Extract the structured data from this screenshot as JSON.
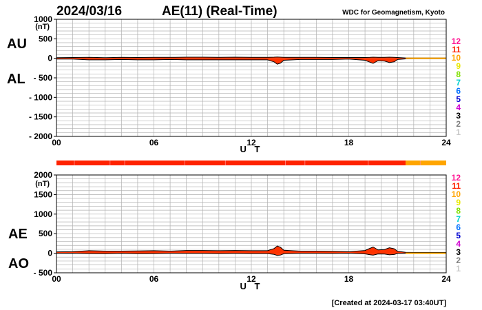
{
  "header": {
    "date": "2024/03/16",
    "title": "AE(11) (Real-Time)",
    "source": "WDC for Geomagnetism, Kyoto"
  },
  "footer": "[Created at 2024-03-17 03:40UT]",
  "colors": {
    "main_trace": "#ff3300",
    "late_trace": "#ffa500",
    "bar_main": "#ff3300",
    "bar_late": "#ffa500",
    "outline": "#000000"
  },
  "legend": [
    {
      "label": "12",
      "color": "#ff1493"
    },
    {
      "label": "11",
      "color": "#ff2200"
    },
    {
      "label": "10",
      "color": "#ffa500"
    },
    {
      "label": "9",
      "color": "#e8e800"
    },
    {
      "label": "8",
      "color": "#80e000"
    },
    {
      "label": "7",
      "color": "#00d0d0"
    },
    {
      "label": "6",
      "color": "#0070ff"
    },
    {
      "label": "5",
      "color": "#0000d0"
    },
    {
      "label": "4",
      "color": "#d000d0"
    },
    {
      "label": "3",
      "color": "#000000"
    },
    {
      "label": "2",
      "color": "#808080"
    },
    {
      "label": "1",
      "color": "#c8c8c8"
    }
  ],
  "station_bar": {
    "segments": [
      {
        "from_hour": 0,
        "to_hour": 21.5,
        "stations": 11
      },
      {
        "from_hour": 21.5,
        "to_hour": 24,
        "stations": 10
      }
    ]
  },
  "chart_data": [
    {
      "type": "area",
      "panel": "AU/AL",
      "side_labels": [
        "AU",
        "AL"
      ],
      "unit_label": "(nT)",
      "xlabel": "U T",
      "x_ticks": [
        "00",
        "06",
        "12",
        "18",
        "24"
      ],
      "xlim": [
        0,
        24
      ],
      "ylim": [
        -2000,
        1000
      ],
      "y_ticks": [
        "1000",
        "500",
        "0",
        "- 500",
        "- 1000",
        "- 1500",
        "- 2000"
      ],
      "grid": true,
      "hours": [
        0,
        1,
        2,
        3,
        4,
        5,
        6,
        7,
        8,
        9,
        10,
        11,
        12,
        13,
        13.4,
        13.6,
        13.8,
        14,
        15,
        16,
        17,
        18,
        19,
        19.3,
        19.5,
        19.8,
        20.2,
        20.5,
        20.8,
        21,
        21.5,
        22,
        23,
        24
      ],
      "series": [
        {
          "name": "AU",
          "values": [
            15,
            20,
            25,
            15,
            25,
            20,
            25,
            25,
            30,
            30,
            25,
            30,
            25,
            25,
            30,
            35,
            30,
            25,
            25,
            25,
            20,
            20,
            20,
            25,
            30,
            25,
            25,
            30,
            25,
            20,
            10,
            10,
            10,
            10
          ]
        },
        {
          "name": "AL",
          "values": [
            -20,
            -20,
            -40,
            -40,
            -30,
            -40,
            -40,
            -30,
            -40,
            -40,
            -40,
            -40,
            -40,
            -40,
            -90,
            -150,
            -120,
            -50,
            -30,
            -30,
            -30,
            -20,
            -50,
            -100,
            -130,
            -60,
            -70,
            -110,
            -90,
            -30,
            -15,
            -10,
            -10,
            -10
          ]
        }
      ]
    },
    {
      "type": "area",
      "panel": "AE/AO",
      "side_labels": [
        "AE",
        "AO"
      ],
      "unit_label": "(nT)",
      "xlabel": "U T",
      "x_ticks": [
        "00",
        "06",
        "12",
        "18",
        "24"
      ],
      "xlim": [
        0,
        24
      ],
      "ylim": [
        -500,
        2000
      ],
      "y_ticks": [
        "2000",
        "1500",
        "1000",
        "500",
        "0",
        "- 500"
      ],
      "grid": true,
      "hours": [
        0,
        1,
        2,
        3,
        4,
        5,
        6,
        7,
        8,
        9,
        10,
        11,
        12,
        13,
        13.4,
        13.6,
        13.8,
        14,
        15,
        16,
        17,
        18,
        19,
        19.3,
        19.5,
        19.8,
        20.2,
        20.5,
        20.8,
        21,
        21.5,
        22,
        23,
        24
      ],
      "series": [
        {
          "name": "AE",
          "values": [
            35,
            40,
            65,
            55,
            55,
            60,
            65,
            55,
            70,
            70,
            65,
            70,
            65,
            65,
            120,
            185,
            150,
            75,
            55,
            55,
            50,
            40,
            70,
            125,
            160,
            85,
            95,
            140,
            115,
            50,
            25,
            20,
            20,
            20
          ]
        },
        {
          "name": "AO",
          "values": [
            -2,
            0,
            -8,
            -12,
            -2,
            -10,
            -8,
            -2,
            -5,
            -5,
            -8,
            -5,
            -8,
            -8,
            -30,
            -58,
            -45,
            -12,
            -2,
            -2,
            -5,
            0,
            -15,
            -38,
            -50,
            -18,
            -22,
            -40,
            -32,
            -5,
            -2,
            0,
            0,
            0
          ]
        }
      ]
    }
  ]
}
